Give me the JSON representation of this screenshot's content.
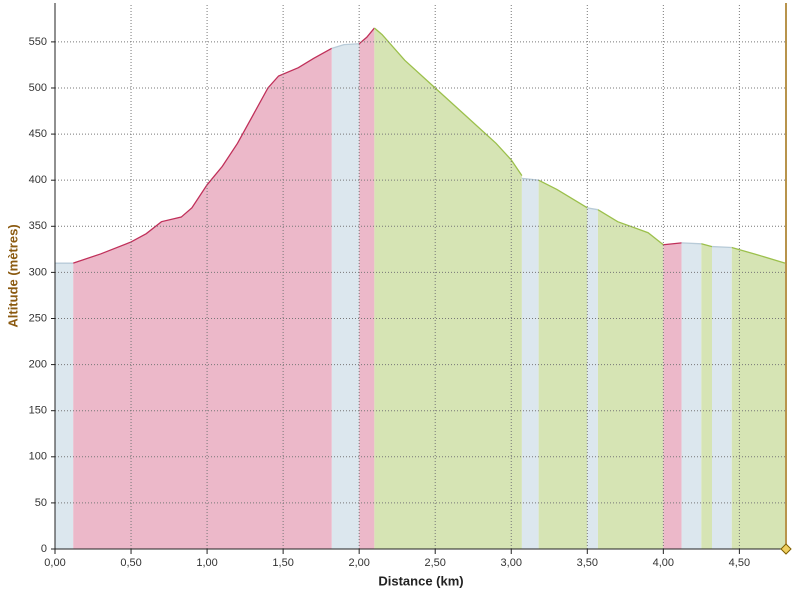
{
  "chart_data": {
    "type": "area",
    "xlabel": "Distance (km)",
    "ylabel": "Altitude (mètres)",
    "xlim": [
      0,
      4.8
    ],
    "ylim": [
      0,
      590
    ],
    "xticks": [
      {
        "value": 0,
        "label": "0,00"
      },
      {
        "value": 0.5,
        "label": "0,50"
      },
      {
        "value": 1,
        "label": "1,00"
      },
      {
        "value": 1.5,
        "label": "1,50"
      },
      {
        "value": 2,
        "label": "2,00"
      },
      {
        "value": 2.5,
        "label": "2,50"
      },
      {
        "value": 3,
        "label": "3,00"
      },
      {
        "value": 3.5,
        "label": "3,50"
      },
      {
        "value": 4,
        "label": "4,00"
      },
      {
        "value": 4.5,
        "label": "4,50"
      }
    ],
    "yticks": [
      0,
      50,
      100,
      150,
      200,
      250,
      300,
      350,
      400,
      450,
      500,
      550
    ],
    "grid": true,
    "series": [
      {
        "color": "#dce7ee",
        "line": "#b8cbd8",
        "x": [
          0,
          0.12
        ],
        "values": [
          310,
          310
        ]
      },
      {
        "color": "#ecb8c9",
        "line": "#c0305a",
        "x": [
          0.12,
          0.3,
          0.5,
          0.6,
          0.7,
          0.83,
          0.9,
          1.0,
          1.1,
          1.2,
          1.3,
          1.4,
          1.47,
          1.6,
          1.7,
          1.82
        ],
        "values": [
          310,
          320,
          333,
          342,
          355,
          360,
          370,
          395,
          415,
          440,
          470,
          500,
          513,
          522,
          532,
          543
        ]
      },
      {
        "color": "#dce7ee",
        "line": "#b8cbd8",
        "x": [
          1.82,
          1.9,
          2.0
        ],
        "values": [
          543,
          547,
          548
        ]
      },
      {
        "color": "#ecb8c9",
        "line": "#c0305a",
        "x": [
          2.0,
          2.05,
          2.1
        ],
        "values": [
          548,
          555,
          565
        ]
      },
      {
        "color": "#d6e4b4",
        "line": "#9cc04c",
        "x": [
          2.1,
          2.15,
          2.3,
          2.5,
          2.7,
          2.9,
          3.0,
          3.07
        ],
        "values": [
          565,
          558,
          530,
          500,
          470,
          440,
          422,
          405
        ]
      },
      {
        "color": "#dce7ee",
        "line": "#b8cbd8",
        "x": [
          3.07,
          3.18
        ],
        "values": [
          402,
          400
        ]
      },
      {
        "color": "#d6e4b4",
        "line": "#9cc04c",
        "x": [
          3.18,
          3.3,
          3.45,
          3.5
        ],
        "values": [
          400,
          390,
          375,
          370
        ]
      },
      {
        "color": "#dce7ee",
        "line": "#b8cbd8",
        "x": [
          3.5,
          3.57
        ],
        "values": [
          370,
          368
        ]
      },
      {
        "color": "#d6e4b4",
        "line": "#9cc04c",
        "x": [
          3.57,
          3.7,
          3.9,
          4.0
        ],
        "values": [
          368,
          355,
          343,
          330
        ]
      },
      {
        "color": "#ecb8c9",
        "line": "#c0305a",
        "x": [
          4.0,
          4.12
        ],
        "values": [
          330,
          332
        ]
      },
      {
        "color": "#dce7ee",
        "line": "#b8cbd8",
        "x": [
          4.12,
          4.25
        ],
        "values": [
          332,
          331
        ]
      },
      {
        "color": "#d6e4b4",
        "line": "#9cc04c",
        "x": [
          4.25,
          4.32
        ],
        "values": [
          331,
          328
        ]
      },
      {
        "color": "#dce7ee",
        "line": "#b8cbd8",
        "x": [
          4.32,
          4.45
        ],
        "values": [
          328,
          327
        ]
      },
      {
        "color": "#d6e4b4",
        "line": "#9cc04c",
        "x": [
          4.45,
          4.6,
          4.8
        ],
        "values": [
          327,
          320,
          310
        ]
      }
    ]
  }
}
